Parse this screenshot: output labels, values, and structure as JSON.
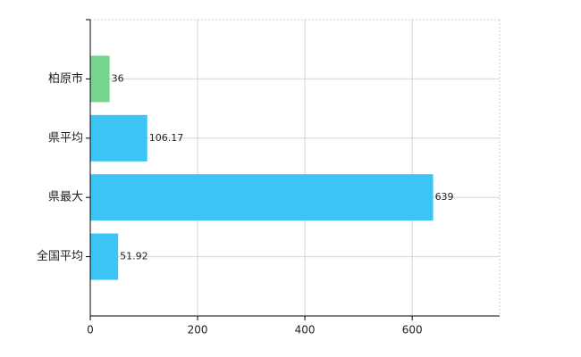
{
  "chart_data": {
    "type": "hbar",
    "categories": [
      "柏原市",
      "県平均",
      "県最大",
      "全国平均"
    ],
    "values": [
      36,
      106.17,
      639,
      51.92
    ],
    "colors": [
      "#77d68e",
      "#3cc4f4",
      "#3cc4f4",
      "#3cc4f4"
    ],
    "xlim": [
      0,
      763
    ],
    "xticks": [
      0,
      200,
      400,
      600
    ],
    "grid": true
  }
}
